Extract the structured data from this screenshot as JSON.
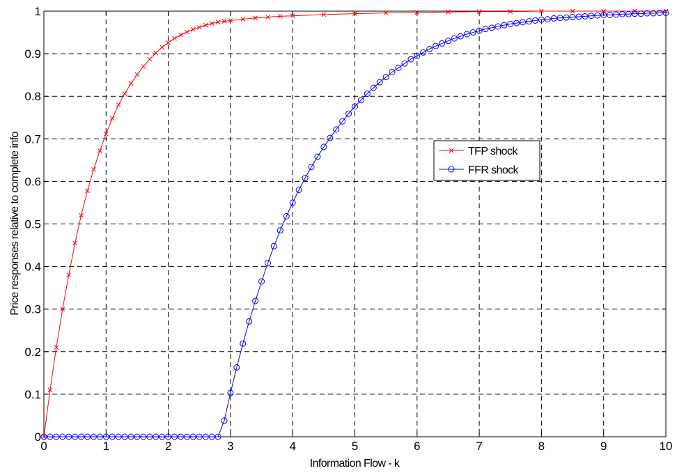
{
  "chart_data": {
    "type": "line",
    "xlabel": "Information Flow - k",
    "ylabel": "Price responses relative to complete info",
    "xlim": [
      0,
      10
    ],
    "ylim": [
      0,
      1
    ],
    "x_ticks": [
      0,
      1,
      2,
      3,
      4,
      5,
      6,
      7,
      8,
      9,
      10
    ],
    "y_ticks": [
      0,
      0.1,
      0.2,
      0.3,
      0.4,
      0.5,
      0.6,
      0.7,
      0.8,
      0.9,
      1
    ],
    "x_tick_labels": [
      "0",
      "1",
      "2",
      "3",
      "4",
      "5",
      "6",
      "7",
      "8",
      "9",
      "10"
    ],
    "y_tick_labels": [
      "0",
      "0.1",
      "0.2",
      "0.3",
      "0.4",
      "0.5",
      "0.6",
      "0.7",
      "0.8",
      "0.9",
      "1"
    ],
    "grid": true,
    "legend_position": "center-right",
    "series": [
      {
        "name": "TFP shock",
        "color": "#ff0000",
        "marker": "x",
        "x": [
          0,
          0.1,
          0.2,
          0.3,
          0.4,
          0.5,
          0.6,
          0.7,
          0.8,
          0.9,
          1.0,
          1.1,
          1.2,
          1.3,
          1.4,
          1.5,
          1.6,
          1.7,
          1.8,
          1.9,
          2.0,
          2.1,
          2.2,
          2.3,
          2.4,
          2.5,
          2.6,
          2.7,
          2.8,
          2.9,
          3.0,
          3.2,
          3.4,
          3.6,
          3.8,
          4.0,
          4.5,
          5.0,
          5.5,
          6.0,
          6.5,
          7.0,
          7.5,
          8.0,
          8.5,
          9.0,
          9.5,
          10.0
        ],
        "values": [
          0,
          0.11,
          0.21,
          0.3,
          0.38,
          0.455,
          0.52,
          0.578,
          0.628,
          0.672,
          0.712,
          0.748,
          0.78,
          0.806,
          0.83,
          0.851,
          0.87,
          0.887,
          0.902,
          0.915,
          0.926,
          0.936,
          0.944,
          0.951,
          0.957,
          0.962,
          0.967,
          0.971,
          0.974,
          0.976,
          0.978,
          0.981,
          0.984,
          0.986,
          0.988,
          0.989,
          0.992,
          0.994,
          0.996,
          0.997,
          0.998,
          0.999,
          0.999,
          1.0,
          1.0,
          1.0,
          1.0,
          1.0
        ]
      },
      {
        "name": "FFR shock",
        "color": "#0000ff",
        "marker": "o",
        "x": [
          0,
          0.1,
          0.2,
          0.3,
          0.4,
          0.5,
          0.6,
          0.7,
          0.8,
          0.9,
          1.0,
          1.1,
          1.2,
          1.3,
          1.4,
          1.5,
          1.6,
          1.7,
          1.8,
          1.9,
          2.0,
          2.1,
          2.2,
          2.3,
          2.4,
          2.5,
          2.6,
          2.7,
          2.8,
          2.9,
          3.0,
          3.1,
          3.2,
          3.3,
          3.4,
          3.5,
          3.6,
          3.7,
          3.8,
          3.9,
          4.0,
          4.1,
          4.2,
          4.3,
          4.4,
          4.5,
          4.6,
          4.7,
          4.8,
          4.9,
          5.0,
          5.1,
          5.2,
          5.3,
          5.4,
          5.5,
          5.6,
          5.7,
          5.8,
          5.9,
          6.0,
          6.1,
          6.2,
          6.3,
          6.4,
          6.5,
          6.6,
          6.7,
          6.8,
          6.9,
          7.0,
          7.1,
          7.2,
          7.3,
          7.4,
          7.5,
          7.6,
          7.7,
          7.8,
          7.9,
          8.0,
          8.1,
          8.2,
          8.3,
          8.4,
          8.5,
          8.6,
          8.7,
          8.8,
          8.9,
          9.0,
          9.1,
          9.2,
          9.3,
          9.4,
          9.5,
          9.6,
          9.7,
          9.8,
          9.9,
          10.0
        ],
        "values": [
          0,
          0,
          0,
          0,
          0,
          0,
          0,
          0,
          0,
          0,
          0,
          0,
          0,
          0,
          0,
          0,
          0,
          0,
          0,
          0,
          0,
          0,
          0,
          0,
          0,
          0,
          0,
          0,
          0,
          0.038,
          0.103,
          0.163,
          0.219,
          0.271,
          0.319,
          0.365,
          0.408,
          0.448,
          0.485,
          0.518,
          0.55,
          0.58,
          0.608,
          0.634,
          0.658,
          0.681,
          0.702,
          0.722,
          0.741,
          0.759,
          0.776,
          0.791,
          0.806,
          0.82,
          0.833,
          0.845,
          0.857,
          0.867,
          0.877,
          0.887,
          0.895,
          0.903,
          0.911,
          0.918,
          0.924,
          0.93,
          0.936,
          0.941,
          0.946,
          0.95,
          0.954,
          0.958,
          0.961,
          0.964,
          0.967,
          0.97,
          0.972,
          0.974,
          0.976,
          0.978,
          0.98,
          0.981,
          0.983,
          0.984,
          0.985,
          0.986,
          0.987,
          0.988,
          0.989,
          0.99,
          0.991,
          0.991,
          0.992,
          0.993,
          0.993,
          0.994,
          0.994,
          0.995,
          0.995,
          0.996,
          0.996
        ]
      }
    ]
  }
}
